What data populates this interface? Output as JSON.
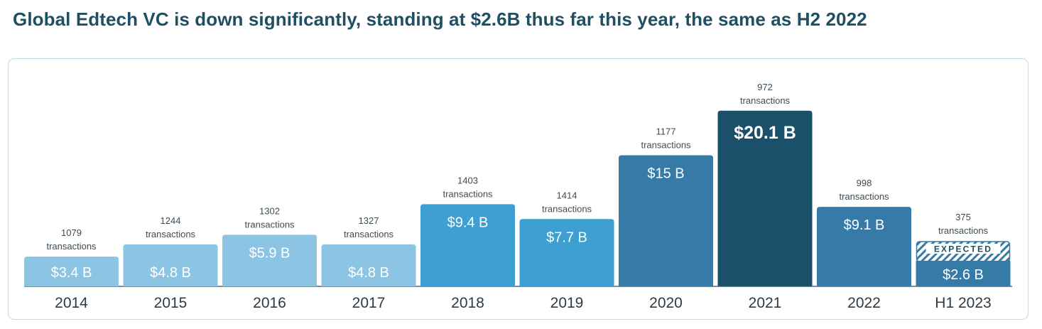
{
  "title": "Global Edtech VC is down significantly, standing at $2.6B thus far this year, the same as H2 2022",
  "chart_data": {
    "type": "bar",
    "title": "Global Edtech VC is down significantly, standing at $2.6B thus far this year, the same as H2 2022",
    "xlabel": "",
    "ylabel": "",
    "categories": [
      "2014",
      "2015",
      "2016",
      "2017",
      "2018",
      "2019",
      "2020",
      "2021",
      "2022",
      "H1 2023"
    ],
    "values": [
      3.4,
      4.8,
      5.9,
      4.8,
      9.4,
      7.7,
      15,
      20.1,
      9.1,
      2.6
    ],
    "value_labels": [
      "$3.4 B",
      "$4.8 B",
      "$5.9 B",
      "$4.8 B",
      "$9.4 B",
      "$7.7 B",
      "$15 B",
      "$20.1 B",
      "$9.1 B",
      "$2.6 B"
    ],
    "transactions": [
      1079,
      1244,
      1302,
      1327,
      1403,
      1414,
      1177,
      972,
      998,
      375
    ],
    "transactions_label": "transactions",
    "expected_label": "EXPECTED",
    "bar_colors": [
      "#8cc5e3",
      "#8cc5e3",
      "#8cc5e3",
      "#8cc5e3",
      "#3d9fd2",
      "#3d9fd2",
      "#367aa8",
      "#1b506b",
      "#367aa8",
      "#367aa8"
    ],
    "expected_color": "#367aa8",
    "grid": false,
    "legend": "none"
  }
}
